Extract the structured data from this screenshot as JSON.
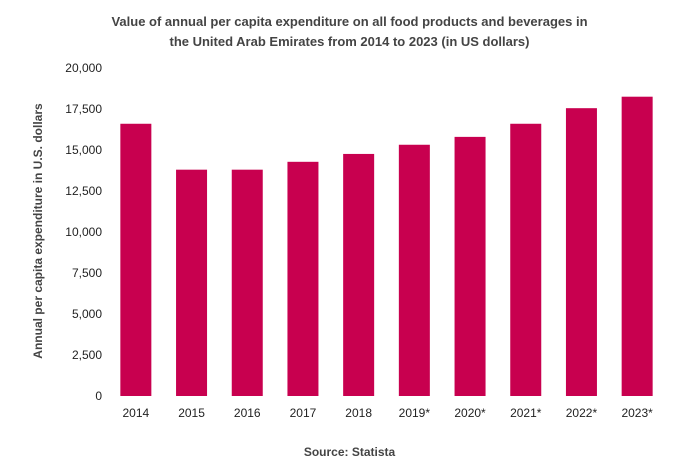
{
  "chart_data": {
    "type": "bar",
    "title_lines": [
      "Value of annual per capita expenditure on all food products and beverages in",
      "the United Arab Emirates from 2014 to 2023 (in US dollars)"
    ],
    "categories": [
      "2014",
      "2015",
      "2016",
      "2017",
      "2018",
      "2019*",
      "2020*",
      "2021*",
      "2022*",
      "2023*"
    ],
    "values": [
      16600,
      13800,
      13800,
      14280,
      14760,
      15320,
      15800,
      16600,
      17550,
      18250
    ],
    "ylabel": "Annual per capita expenditure in U.S. dollars",
    "ylim": [
      0,
      20000
    ],
    "yticks": [
      0,
      2500,
      5000,
      7500,
      10000,
      12500,
      15000,
      17500,
      20000
    ],
    "ytick_labels": [
      "0",
      "2,500",
      "5,000",
      "7,500",
      "10,000",
      "12,500",
      "15,000",
      "17,500",
      "20,000"
    ],
    "grid": false,
    "bar_color": "#c8004f"
  },
  "source": "Source: Statista"
}
